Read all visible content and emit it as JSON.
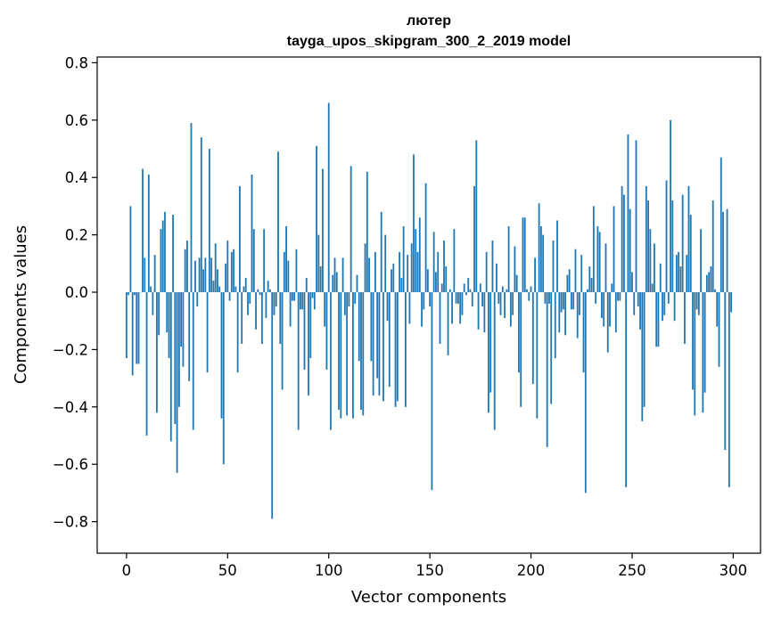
{
  "chart_data": {
    "type": "bar",
    "title": "лютер",
    "subtitle": "tayga_upos_skipgram_300_2_2019 model",
    "xlabel": "Vector components",
    "ylabel": "Components values",
    "xlim": [
      -14.5,
      313.5
    ],
    "ylim": [
      -0.91,
      0.82
    ],
    "bar_color": "#1f77b4",
    "grid": false,
    "xticks": [
      0,
      50,
      100,
      150,
      200,
      250,
      300
    ],
    "xtick_labels": [
      "0",
      "50",
      "100",
      "150",
      "200",
      "250",
      "300"
    ],
    "yticks": [
      -0.8,
      -0.6,
      -0.4,
      -0.2,
      0.0,
      0.2,
      0.4,
      0.6,
      0.8
    ],
    "ytick_labels": [
      "−0.8",
      "−0.6",
      "−0.4",
      "−0.2",
      "0.0",
      "0.2",
      "0.4",
      "0.6",
      "0.8"
    ],
    "values": [
      -0.23,
      -0.01,
      0.3,
      -0.29,
      -0.01,
      -0.25,
      -0.25,
      0.0,
      0.43,
      0.12,
      -0.5,
      0.41,
      0.02,
      -0.08,
      0.13,
      -0.42,
      -0.15,
      0.22,
      0.25,
      0.28,
      -0.14,
      -0.23,
      -0.52,
      0.27,
      -0.46,
      -0.63,
      -0.4,
      -0.19,
      -0.26,
      0.15,
      0.18,
      -0.31,
      0.59,
      -0.48,
      0.11,
      -0.05,
      0.12,
      0.54,
      0.08,
      0.12,
      -0.28,
      0.5,
      0.12,
      0.04,
      0.17,
      0.08,
      0.02,
      -0.44,
      -0.6,
      0.1,
      0.18,
      -0.03,
      0.14,
      0.15,
      0.02,
      -0.28,
      0.37,
      -0.18,
      0.02,
      0.05,
      -0.08,
      -0.04,
      0.41,
      0.22,
      -0.13,
      0.01,
      -0.01,
      -0.18,
      0.22,
      -0.09,
      0.04,
      0.01,
      -0.79,
      -0.08,
      -0.05,
      0.49,
      -0.18,
      -0.34,
      0.14,
      0.23,
      0.11,
      -0.12,
      -0.03,
      -0.03,
      0.15,
      -0.48,
      -0.06,
      -0.06,
      -0.27,
      0.05,
      -0.36,
      -0.23,
      -0.02,
      -0.06,
      0.51,
      0.2,
      0.09,
      0.43,
      -0.12,
      -0.27,
      0.66,
      -0.48,
      0.06,
      0.12,
      0.07,
      -0.41,
      -0.44,
      0.12,
      -0.08,
      -0.43,
      -0.05,
      0.44,
      -0.44,
      -0.04,
      0.06,
      -0.24,
      -0.41,
      -0.43,
      0.17,
      0.42,
      0.12,
      -0.24,
      -0.36,
      0.14,
      -0.3,
      -0.36,
      0.28,
      -0.38,
      0.2,
      -0.1,
      -0.33,
      0.08,
      0.1,
      -0.4,
      -0.38,
      0.14,
      0.05,
      0.23,
      -0.4,
      0.13,
      -0.11,
      0.17,
      0.48,
      0.22,
      0.14,
      0.26,
      -0.12,
      -0.06,
      0.38,
      0.08,
      -0.05,
      -0.69,
      0.21,
      0.07,
      0.14,
      -0.18,
      0.03,
      0.18,
      0.09,
      -0.22,
      0.01,
      -0.11,
      0.22,
      -0.04,
      -0.04,
      -0.11,
      -0.08,
      0.03,
      -0.01,
      0.05,
      0.01,
      -0.05,
      0.37,
      0.53,
      -0.13,
      0.03,
      -0.05,
      -0.14,
      0.14,
      -0.42,
      -0.35,
      0.18,
      -0.48,
      0.1,
      -0.04,
      -0.08,
      0.02,
      -0.09,
      0.01,
      0.23,
      -0.12,
      -0.08,
      0.16,
      0.06,
      -0.28,
      -0.4,
      0.26,
      0.26,
      0.01,
      -0.03,
      0.02,
      -0.32,
      0.12,
      -0.44,
      0.31,
      0.23,
      0.2,
      -0.04,
      -0.54,
      -0.04,
      -0.39,
      0.18,
      -0.23,
      0.25,
      -0.14,
      -0.07,
      -0.06,
      -0.15,
      0.06,
      0.08,
      -0.06,
      -0.06,
      0.15,
      -0.16,
      -0.08,
      0.13,
      -0.28,
      -0.7,
      0.01,
      0.09,
      0.05,
      0.3,
      -0.04,
      0.23,
      0.21,
      -0.09,
      -0.12,
      0.17,
      -0.21,
      -0.12,
      0.03,
      0.3,
      -0.14,
      -0.03,
      -0.03,
      0.37,
      0.34,
      -0.68,
      0.55,
      0.29,
      0.07,
      -0.08,
      0.53,
      -0.05,
      -0.13,
      -0.45,
      -0.4,
      0.37,
      0.32,
      0.22,
      0.03,
      0.17,
      -0.19,
      -0.19,
      0.1,
      -0.1,
      -0.08,
      0.39,
      -0.04,
      0.6,
      0.32,
      -0.1,
      0.13,
      0.14,
      0.09,
      0.34,
      -0.18,
      0.13,
      0.37,
      0.27,
      -0.34,
      -0.43,
      -0.06,
      -0.08,
      0.22,
      -0.42,
      -0.35,
      0.06,
      0.07,
      0.09,
      0.32,
      0.01,
      -0.12,
      -0.26,
      0.47,
      0.28,
      -0.55,
      0.29,
      -0.68,
      -0.07
    ]
  }
}
